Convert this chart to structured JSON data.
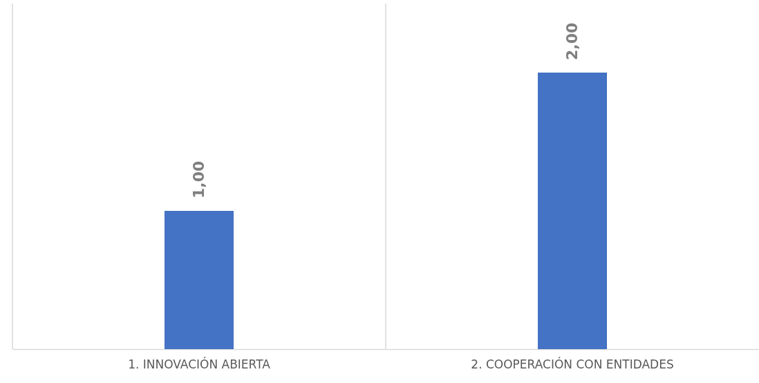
{
  "chart_data": {
    "type": "bar",
    "categories": [
      "1. INNOVACIÓN ABIERTA",
      "2. COOPERACIÓN CON ENTIDADES"
    ],
    "values": [
      1.0,
      2.0
    ],
    "color": "#4472c4",
    "value_labels": [
      "1,00",
      "2,00"
    ],
    "ylim": [
      0,
      2.5
    ],
    "tick_labels": "x",
    "grid": "x"
  }
}
